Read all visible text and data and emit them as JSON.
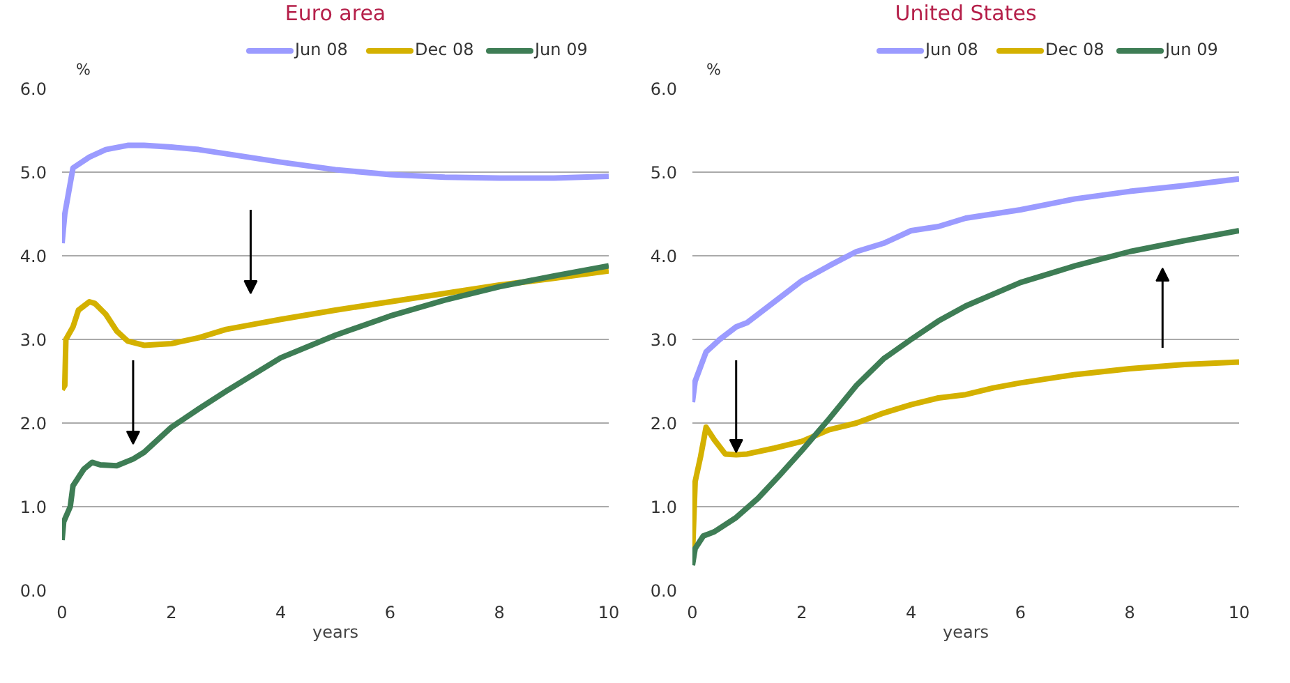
{
  "chart_data": [
    {
      "type": "line",
      "title": "Euro area",
      "ylabel": "%",
      "xlabel": "years",
      "xlim": [
        0,
        10
      ],
      "xticks": [
        0,
        2,
        4,
        6,
        8,
        10
      ],
      "ylim": [
        0,
        6
      ],
      "yticks": [
        {
          "value": 0,
          "label": "0.0"
        },
        {
          "value": 1,
          "label": "1.0"
        },
        {
          "value": 2,
          "label": "2.0"
        },
        {
          "value": 3,
          "label": "3.0"
        },
        {
          "value": 4,
          "label": "4.0"
        },
        {
          "value": 5,
          "label": "5.0"
        },
        {
          "value": 6,
          "label": "6.0"
        }
      ],
      "grid": "y",
      "legend": "top right",
      "line_style": "solid",
      "series": [
        {
          "name": "Jun 08",
          "color": "#9b9bff",
          "x": [
            0,
            0.05,
            0.2,
            0.5,
            0.8,
            1.2,
            1.5,
            2,
            2.5,
            3,
            3.5,
            4,
            5,
            6,
            7,
            8,
            9,
            10
          ],
          "values": [
            4.15,
            4.5,
            5.05,
            5.18,
            5.27,
            5.32,
            5.32,
            5.3,
            5.27,
            5.22,
            5.17,
            5.12,
            5.03,
            4.97,
            4.94,
            4.93,
            4.93,
            4.95
          ]
        },
        {
          "name": "Dec 08",
          "color": "#d4b100",
          "x": [
            0,
            0.05,
            0.07,
            0.2,
            0.3,
            0.5,
            0.6,
            0.8,
            1.0,
            1.2,
            1.5,
            2,
            2.5,
            3,
            3.5,
            4,
            5,
            6,
            7,
            8,
            9,
            10
          ],
          "values": [
            2.4,
            2.45,
            3.0,
            3.15,
            3.35,
            3.45,
            3.43,
            3.3,
            3.1,
            2.98,
            2.93,
            2.95,
            3.02,
            3.12,
            3.18,
            3.24,
            3.35,
            3.45,
            3.55,
            3.65,
            3.73,
            3.82
          ]
        },
        {
          "name": "Jun 09",
          "color": "#3e7d55",
          "x": [
            0,
            0.03,
            0.15,
            0.2,
            0.4,
            0.55,
            0.7,
            1.0,
            1.3,
            1.5,
            2,
            2.5,
            3,
            3.5,
            4,
            5,
            6,
            7,
            8,
            9,
            10
          ],
          "values": [
            0.6,
            0.82,
            1.0,
            1.25,
            1.45,
            1.53,
            1.5,
            1.49,
            1.57,
            1.65,
            1.95,
            2.17,
            2.38,
            2.58,
            2.78,
            3.05,
            3.28,
            3.47,
            3.63,
            3.76,
            3.88
          ]
        }
      ]
    },
    {
      "type": "line",
      "title": "United States",
      "ylabel": "%",
      "xlabel": "years",
      "xlim": [
        0,
        10
      ],
      "xticks": [
        0,
        2,
        4,
        6,
        8,
        10
      ],
      "ylim": [
        0,
        6
      ],
      "yticks": [
        {
          "value": 0,
          "label": "0.0"
        },
        {
          "value": 1,
          "label": "1.0"
        },
        {
          "value": 2,
          "label": "2.0"
        },
        {
          "value": 3,
          "label": "3.0"
        },
        {
          "value": 4,
          "label": "4.0"
        },
        {
          "value": 5,
          "label": "5.0"
        },
        {
          "value": 6,
          "label": "6.0"
        }
      ],
      "grid": "y",
      "legend": "top right",
      "line_style": "solid",
      "series": [
        {
          "name": "Jun 08",
          "color": "#9b9bff",
          "x": [
            0,
            0.05,
            0.25,
            0.5,
            0.8,
            1,
            1.5,
            2,
            2.5,
            3,
            3.5,
            4,
            4.5,
            5,
            6,
            7,
            8,
            9,
            10
          ],
          "values": [
            2.25,
            2.5,
            2.85,
            3.0,
            3.15,
            3.2,
            3.45,
            3.7,
            3.88,
            4.05,
            4.15,
            4.3,
            4.35,
            4.45,
            4.55,
            4.68,
            4.77,
            4.84,
            4.92
          ]
        },
        {
          "name": "Dec 08",
          "color": "#d4b100",
          "x": [
            0,
            0.05,
            0.15,
            0.25,
            0.4,
            0.6,
            0.8,
            1.0,
            1.5,
            2,
            2.5,
            3,
            3.5,
            4,
            4.5,
            5,
            5.5,
            6,
            7,
            8,
            9,
            10
          ],
          "values": [
            0.4,
            1.3,
            1.6,
            1.95,
            1.8,
            1.63,
            1.62,
            1.63,
            1.7,
            1.78,
            1.92,
            2.0,
            2.12,
            2.22,
            2.3,
            2.34,
            2.42,
            2.48,
            2.58,
            2.65,
            2.7,
            2.73
          ]
        },
        {
          "name": "Jun 09",
          "color": "#3e7d55",
          "x": [
            0,
            0.05,
            0.2,
            0.4,
            0.8,
            1.2,
            1.6,
            2,
            2.5,
            3,
            3.5,
            4,
            4.5,
            5,
            6,
            7,
            8,
            9,
            10
          ],
          "values": [
            0.3,
            0.5,
            0.65,
            0.7,
            0.87,
            1.1,
            1.38,
            1.67,
            2.05,
            2.45,
            2.77,
            3.0,
            3.22,
            3.4,
            3.68,
            3.88,
            4.05,
            4.18,
            4.3
          ]
        }
      ]
    }
  ]
}
